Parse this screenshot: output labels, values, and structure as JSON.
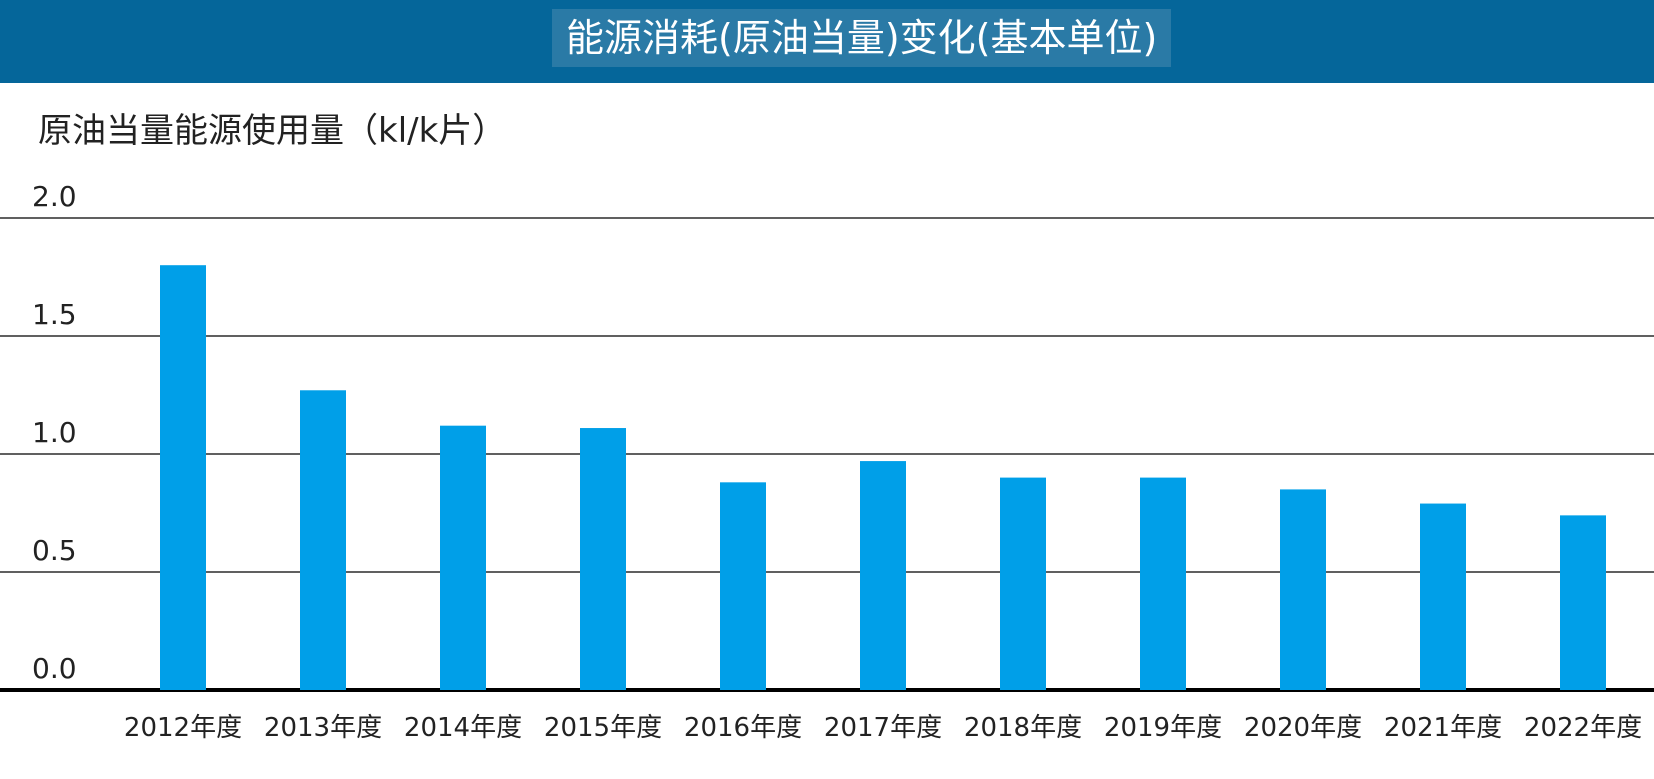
{
  "header": {
    "title": "能源消耗(原油当量)变化(基本单位)"
  },
  "colors": {
    "header_bg": "#05669a",
    "title_box_bg": "#2a7aa6",
    "bar": "#009fe8",
    "grid": "#000000"
  },
  "chart_data": {
    "type": "bar",
    "title": "能源消耗(原油当量)变化(基本单位)",
    "ylabel": "原油当量能源使用量（kl/k片）",
    "xlabel": "",
    "categories": [
      "2012年度",
      "2013年度",
      "2014年度",
      "2015年度",
      "2016年度",
      "2017年度",
      "2018年度",
      "2019年度",
      "2020年度",
      "2021年度",
      "2022年度"
    ],
    "values": [
      1.8,
      1.27,
      1.12,
      1.11,
      0.88,
      0.97,
      0.9,
      0.9,
      0.85,
      0.79,
      0.74
    ],
    "ylim": [
      0,
      2.0
    ],
    "yticks": [
      "0.0",
      "0.5",
      "1.0",
      "1.5",
      "2.0"
    ],
    "grid": true,
    "legend": "none"
  }
}
